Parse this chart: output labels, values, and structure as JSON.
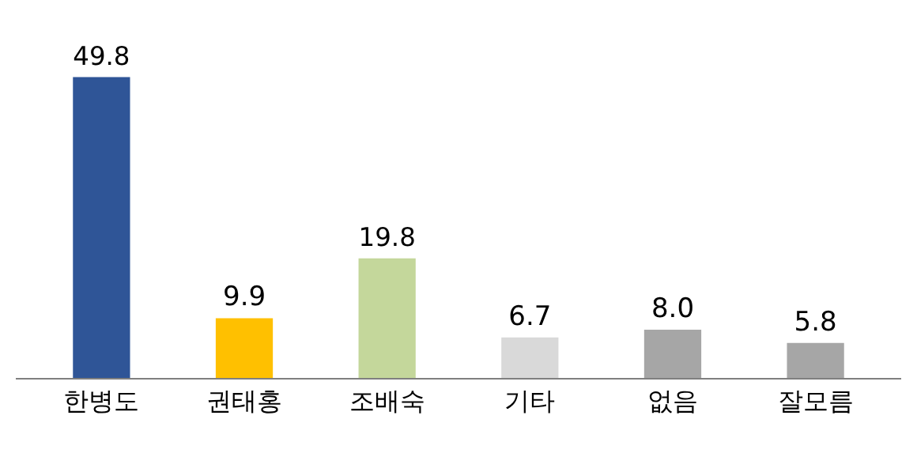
{
  "chart_data": {
    "type": "bar",
    "categories": [
      "한병도",
      "권태홍",
      "조배숙",
      "기타",
      "없음",
      "잘모름"
    ],
    "values": [
      49.8,
      9.9,
      19.8,
      6.7,
      8.0,
      5.8
    ],
    "value_labels": [
      "49.8",
      "9.9",
      "19.8",
      "6.7",
      "8.0",
      "5.8"
    ],
    "colors": [
      "#2f5597",
      "#ffc000",
      "#c4d79b",
      "#d9d9d9",
      "#a6a6a6",
      "#a6a6a6"
    ],
    "data_labels": true
  }
}
